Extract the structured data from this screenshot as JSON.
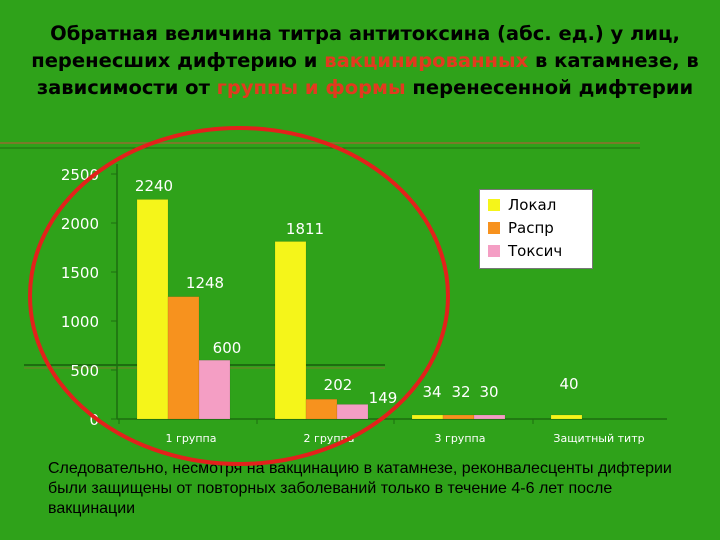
{
  "slide": {
    "title_parts": [
      {
        "text": "Обратная величина титра антитоксина (абс. ед.) у лиц, перенесших дифтерию и ",
        "highlight": false
      },
      {
        "text": "вакцинированных",
        "highlight": true
      },
      {
        "text": " в катамнезе, в зависимости от ",
        "highlight": false
      },
      {
        "text": "группы и формы",
        "highlight": true
      },
      {
        "text": " перенесенной дифтерии",
        "highlight": false
      }
    ],
    "conclusion": "Следовательно, несмотря на вакцинацию в катамнезе, реконвалесценты дифтерии были защищены от повторных заболеваний только в течение 4-6 лет после вакцинации",
    "colors": {
      "background": "#2fa21a",
      "title_highlight": "#e23a1f",
      "circle": "#e3211b"
    }
  },
  "chart_data": {
    "type": "bar",
    "categories": [
      "1 группа",
      "2 группа",
      "3 группа",
      "Защитный титр"
    ],
    "series": [
      {
        "name": "Локал",
        "color": "#f5f51a",
        "values": [
          2240,
          1811,
          34,
          40
        ]
      },
      {
        "name": "Распр",
        "color": "#f7921e",
        "values": [
          1248,
          202,
          32,
          null
        ]
      },
      {
        "name": "Токсич",
        "color": "#f49ec4",
        "values": [
          600,
          149,
          30,
          null
        ]
      }
    ],
    "data_labels": [
      [
        "2240",
        "1811",
        "34",
        "40"
      ],
      [
        "1248",
        "202",
        "32",
        ""
      ],
      [
        "600",
        "149",
        "30",
        ""
      ]
    ],
    "y_ticks": [
      "0",
      "500",
      "1000",
      "1500",
      "2000",
      "2500"
    ],
    "ylim": [
      0,
      2500
    ],
    "legend_position": "top-right",
    "grid": false
  }
}
